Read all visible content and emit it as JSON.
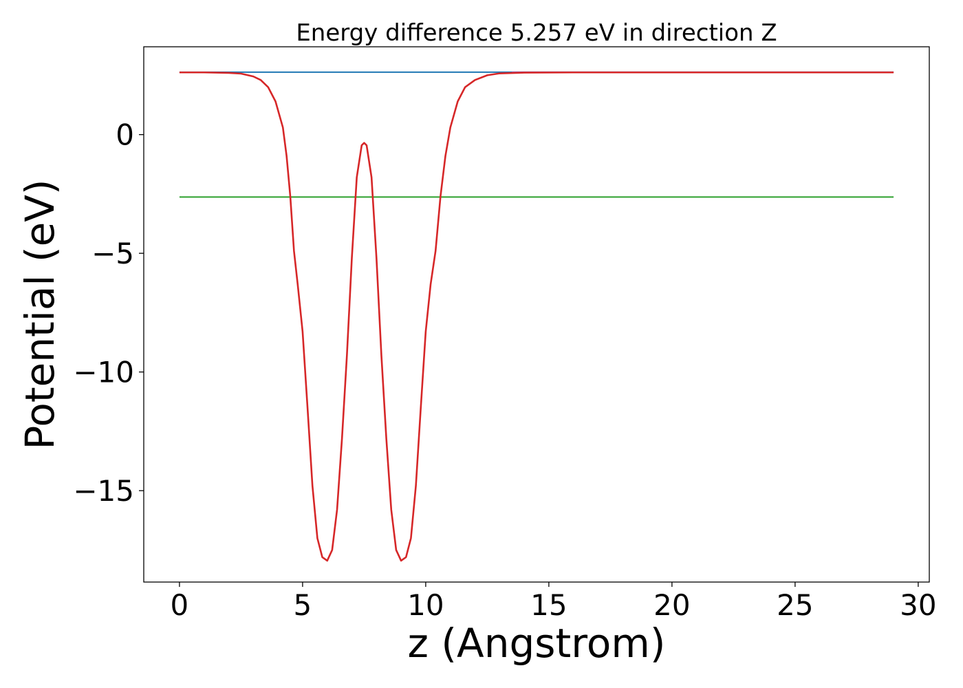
{
  "chart_data": {
    "type": "line",
    "title": "Energy difference 5.257 eV in direction Z",
    "xlabel": "z (Angstrom)",
    "ylabel": "Potential (eV)",
    "xlim": [
      -1.45,
      30.45
    ],
    "ylim": [
      -18.85,
      3.7
    ],
    "xticks": [
      0,
      5,
      10,
      15,
      20,
      25,
      30
    ],
    "yticks": [
      0,
      -5,
      -10,
      -15
    ],
    "xtick_labels": [
      "0",
      "5",
      "10",
      "15",
      "20",
      "25",
      "30"
    ],
    "ytick_labels": [
      "0",
      "−5",
      "−10",
      "−15"
    ],
    "grid": false,
    "legend": "none",
    "series": [
      {
        "color": "#1f77b4",
        "x": [
          0,
          29
        ],
        "y": [
          2.63,
          2.63
        ]
      },
      {
        "color": "#2ca02c",
        "x": [
          0,
          29
        ],
        "y": [
          -2.63,
          -2.63
        ]
      },
      {
        "color": "#9467bd",
        "x": [
          13.5,
          29
        ],
        "y": [
          2.63,
          2.63
        ]
      },
      {
        "color": "#d62728",
        "x": [
          0,
          1.0,
          2.0,
          2.5,
          3.0,
          3.3,
          3.6,
          3.9,
          4.2,
          4.35,
          4.5,
          4.65,
          4.8,
          5.0,
          5.2,
          5.4,
          5.6,
          5.8,
          6.0,
          6.2,
          6.4,
          6.6,
          6.8,
          7.0,
          7.2,
          7.4,
          7.5,
          7.6,
          7.8,
          8.0,
          8.2,
          8.4,
          8.6,
          8.8,
          9.0,
          9.2,
          9.4,
          9.6,
          9.8,
          10.0,
          10.2,
          10.4,
          10.6,
          10.8,
          11.0,
          11.3,
          11.6,
          12.0,
          12.5,
          13.0,
          14.0,
          16.0,
          20.0,
          25.0,
          29.0
        ],
        "y": [
          2.62,
          2.62,
          2.6,
          2.57,
          2.45,
          2.3,
          2.0,
          1.4,
          0.3,
          -0.9,
          -2.6,
          -4.9,
          -6.3,
          -8.3,
          -11.5,
          -14.8,
          -17.0,
          -17.8,
          -17.95,
          -17.5,
          -15.8,
          -12.8,
          -9.3,
          -5.2,
          -1.8,
          -0.45,
          -0.35,
          -0.45,
          -1.8,
          -5.2,
          -9.3,
          -12.8,
          -15.8,
          -17.5,
          -17.95,
          -17.8,
          -17.0,
          -14.8,
          -11.5,
          -8.3,
          -6.3,
          -4.9,
          -2.6,
          -0.9,
          0.3,
          1.4,
          2.0,
          2.3,
          2.5,
          2.58,
          2.61,
          2.62,
          2.62,
          2.62,
          2.62
        ]
      }
    ]
  }
}
